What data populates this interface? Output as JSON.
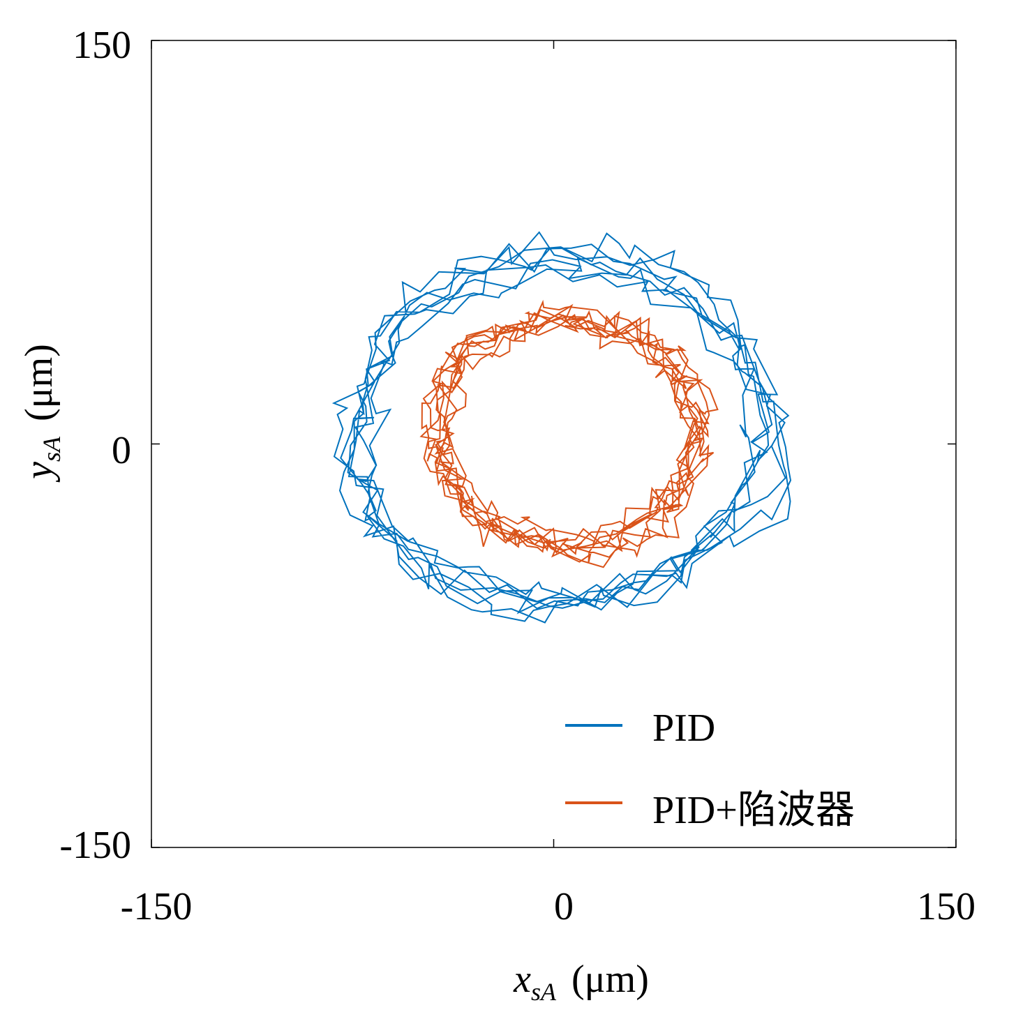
{
  "chart_data": {
    "type": "line",
    "xlabel": {
      "var": "x",
      "sub": "sA",
      "unit": "(μm)"
    },
    "ylabel": {
      "var": "y",
      "sub": "sA",
      "unit": "(μm)"
    },
    "xlim": [
      -150,
      150
    ],
    "ylim": [
      -150,
      150
    ],
    "xticks": [
      -150,
      0,
      150
    ],
    "yticks": [
      -150,
      0,
      150
    ],
    "xtick_labels": [
      "-150",
      "0",
      "150"
    ],
    "ytick_labels": [
      "-150",
      "0",
      "150"
    ],
    "grid": false,
    "legend": {
      "position": "bottom-right"
    },
    "series": [
      {
        "name": "PID",
        "color": "#0072BD",
        "center": [
          2,
          5
        ],
        "radius": [
          77,
          63
        ],
        "loops": 7,
        "points_per_loop": 62,
        "noise": 7
      },
      {
        "name": "PID+陷波器",
        "color": "#D95319",
        "center": [
          5,
          4
        ],
        "radius": [
          48,
          42
        ],
        "loops": 8,
        "points_per_loop": 72,
        "noise": 5
      }
    ]
  }
}
